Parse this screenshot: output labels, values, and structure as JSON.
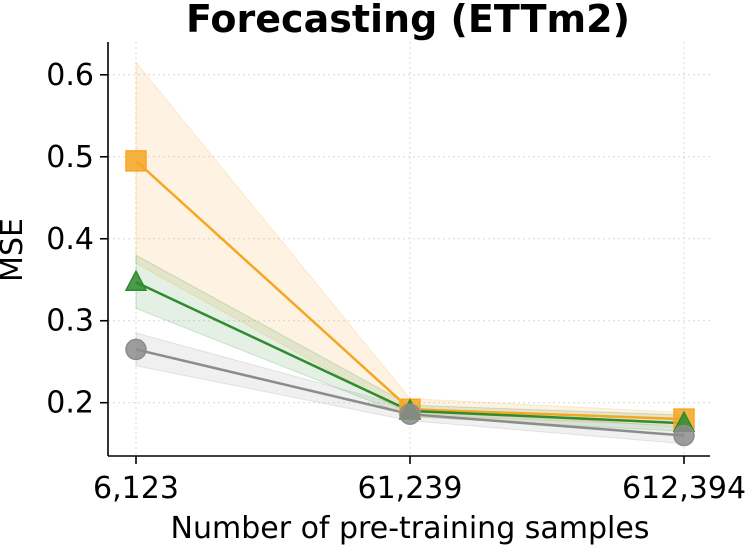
{
  "chart_data": {
    "type": "line",
    "title": "Forecasting (ETTm2)",
    "xlabel": "Number of pre-training samples",
    "ylabel": "MSE",
    "categories": [
      "6,123",
      "61,239",
      "612,394"
    ],
    "ylim": [
      0.135,
      0.64
    ],
    "yticks": [
      0.2,
      0.3,
      0.4,
      0.5,
      0.6
    ],
    "ytick_labels": [
      "0.2",
      "0.3",
      "0.4",
      "0.5",
      "0.6"
    ],
    "grid": true,
    "series": [
      {
        "color": "#f5a623",
        "marker": "square",
        "values": [
          0.495,
          0.192,
          0.18
        ],
        "lower": [
          0.37,
          0.185,
          0.172
        ],
        "upper": [
          0.615,
          0.205,
          0.188
        ]
      },
      {
        "color": "#2e8b2e",
        "marker": "triangle",
        "values": [
          0.347,
          0.19,
          0.175
        ],
        "lower": [
          0.315,
          0.183,
          0.165
        ],
        "upper": [
          0.38,
          0.197,
          0.185
        ]
      },
      {
        "color": "#8c8c8c",
        "marker": "circle",
        "values": [
          0.265,
          0.186,
          0.16
        ],
        "lower": [
          0.245,
          0.178,
          0.15
        ],
        "upper": [
          0.285,
          0.194,
          0.17
        ]
      }
    ]
  }
}
